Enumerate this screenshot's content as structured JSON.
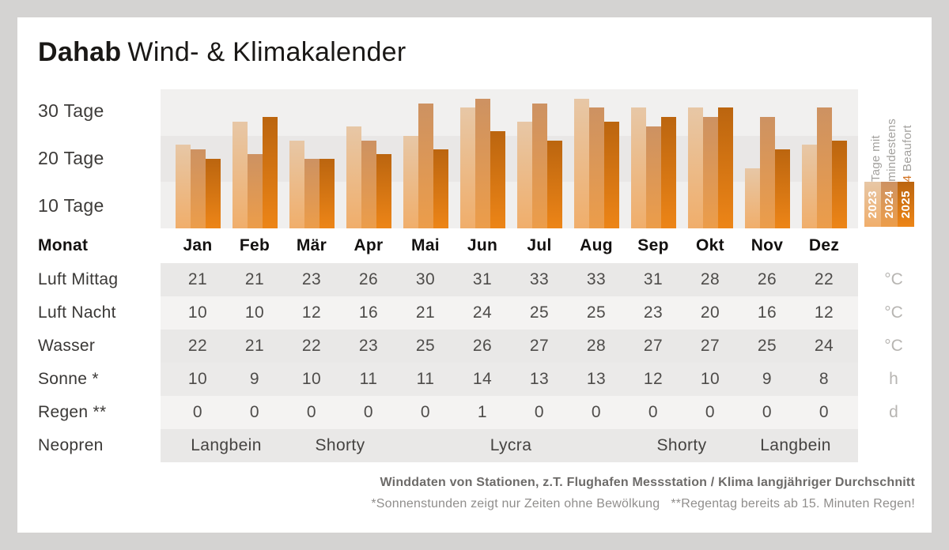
{
  "title": {
    "brand": "Dahab",
    "rest": "Wind- & Klimakalender"
  },
  "colors": {
    "page_bg": "#d4d3d2",
    "card_bg": "#ffffff",
    "accent_orange": "#d2711e"
  },
  "chart_data": {
    "type": "bar",
    "title": "Dahab Wind- & Klimakalender",
    "ylabel": "Tage mit mindestens 4 Beaufort",
    "ylim": [
      0,
      30
    ],
    "ytick_labels": [
      "30 Tage",
      "20 Tage",
      "10 Tage"
    ],
    "band_colors": [
      "#f1f0ef",
      "#e9e7e6",
      "#f0efee"
    ],
    "categories": [
      "Jan",
      "Feb",
      "Mär",
      "Apr",
      "Mai",
      "Jun",
      "Jul",
      "Aug",
      "Sep",
      "Okt",
      "Nov",
      "Dez"
    ],
    "series": [
      {
        "name": "2023",
        "color_top": "#e7c7a6",
        "color_bottom": "#f0ae6b",
        "values": [
          18,
          23,
          19,
          22,
          20,
          26,
          23,
          28,
          26,
          26,
          13,
          18
        ]
      },
      {
        "name": "2024",
        "color_top": "#cd9262",
        "color_bottom": "#ec9d4a",
        "values": [
          17,
          16,
          15,
          19,
          27,
          28,
          27,
          26,
          22,
          24,
          24,
          26
        ]
      },
      {
        "name": "2025",
        "color_top": "#bb650f",
        "color_bottom": "#ed8517",
        "values": [
          15,
          24,
          15,
          16,
          17,
          21,
          19,
          23,
          24,
          26,
          17,
          19
        ]
      }
    ],
    "legend": {
      "line1": "Tage mit",
      "line2": "mindestens",
      "line3_number": "4",
      "line3_text": " Beaufort"
    }
  },
  "table": {
    "header": {
      "label": "Monat"
    },
    "row_bgs": [
      "#e9e8e7",
      "#f4f3f2",
      "#e9e8e7",
      "#ebeae9",
      "#f4f3f2",
      "#e9e8e7"
    ],
    "rows": [
      {
        "label": "Luft Mittag",
        "unit": "°C",
        "values": [
          21,
          21,
          23,
          26,
          30,
          31,
          33,
          33,
          31,
          28,
          26,
          22
        ]
      },
      {
        "label": "Luft Nacht",
        "unit": "°C",
        "values": [
          10,
          10,
          12,
          16,
          21,
          24,
          25,
          25,
          23,
          20,
          16,
          12
        ]
      },
      {
        "label": "Wasser",
        "unit": "°C",
        "values": [
          22,
          21,
          22,
          23,
          25,
          26,
          27,
          28,
          27,
          27,
          25,
          24
        ]
      },
      {
        "label": "Sonne *",
        "unit": "h",
        "values": [
          10,
          9,
          10,
          11,
          11,
          14,
          13,
          13,
          12,
          10,
          9,
          8
        ]
      },
      {
        "label": "Regen **",
        "unit": "d",
        "values": [
          0,
          0,
          0,
          0,
          0,
          1,
          0,
          0,
          0,
          0,
          0,
          0
        ]
      },
      {
        "label": "Neopren",
        "unit": "",
        "segments": [
          {
            "label": "Langbein",
            "start": 0,
            "cols": 2
          },
          {
            "label": "Shorty",
            "start": 2,
            "cols": 2
          },
          {
            "label": "Lycra",
            "start": 4,
            "cols": 4
          },
          {
            "label": "Shorty",
            "start": 8,
            "cols": 2
          },
          {
            "label": "Langbein",
            "start": 10,
            "cols": 2
          }
        ]
      }
    ]
  },
  "footer": {
    "source": "Winddaten von Stationen, z.T. Flughafen Messstation / Klima langjähriger Durchschnitt",
    "note_sun": "*Sonnenstunden zeigt nur Zeiten ohne Bewölkung",
    "note_rain": "**Regentag bereits ab 15. Minuten Regen!"
  }
}
